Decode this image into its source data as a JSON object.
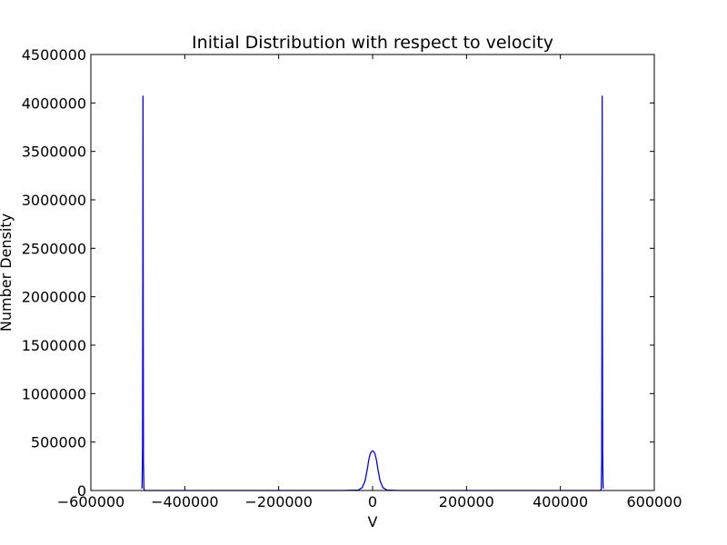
{
  "chart_data": {
    "type": "line",
    "title": "Initial Distribution with respect to velocity",
    "xlabel": "V",
    "ylabel": "Number Density",
    "xlim": [
      -600000,
      600000
    ],
    "ylim": [
      0,
      4500000
    ],
    "xticks": [
      -600000,
      -400000,
      -200000,
      0,
      200000,
      400000,
      600000
    ],
    "xtick_labels": [
      "−600000",
      "−400000",
      "−200000",
      "0",
      "200000",
      "400000",
      "600000"
    ],
    "yticks": [
      0,
      500000,
      1000000,
      1500000,
      2000000,
      2500000,
      3000000,
      3500000,
      4000000,
      4500000
    ],
    "ytick_labels": [
      "0",
      "500000",
      "1000000",
      "1500000",
      "2000000",
      "2500000",
      "3000000",
      "3500000",
      "4000000",
      "4500000"
    ],
    "grid": false,
    "series": [
      {
        "color": "#0000ff",
        "x": [
          -492000,
          -491000,
          -490000,
          -489500,
          -489000,
          -488500,
          -488000,
          -487000,
          -486000,
          -485000,
          -60000,
          -30000,
          -22000,
          -16000,
          -12000,
          -8000,
          -5000,
          -2500,
          0,
          2500,
          5000,
          8000,
          12000,
          16000,
          22000,
          30000,
          60000,
          485000,
          486000,
          487000,
          488000,
          488500,
          489000,
          489500,
          490000,
          491000,
          492000
        ],
        "y": [
          20000,
          30000,
          400000,
          1800000,
          4070000,
          1800000,
          300000,
          20000,
          0,
          0,
          0,
          5000,
          30000,
          100000,
          200000,
          320000,
          380000,
          400000,
          410000,
          400000,
          380000,
          320000,
          200000,
          100000,
          30000,
          5000,
          0,
          0,
          0,
          20000,
          300000,
          1800000,
          4070000,
          1800000,
          400000,
          30000,
          20000
        ]
      }
    ]
  }
}
